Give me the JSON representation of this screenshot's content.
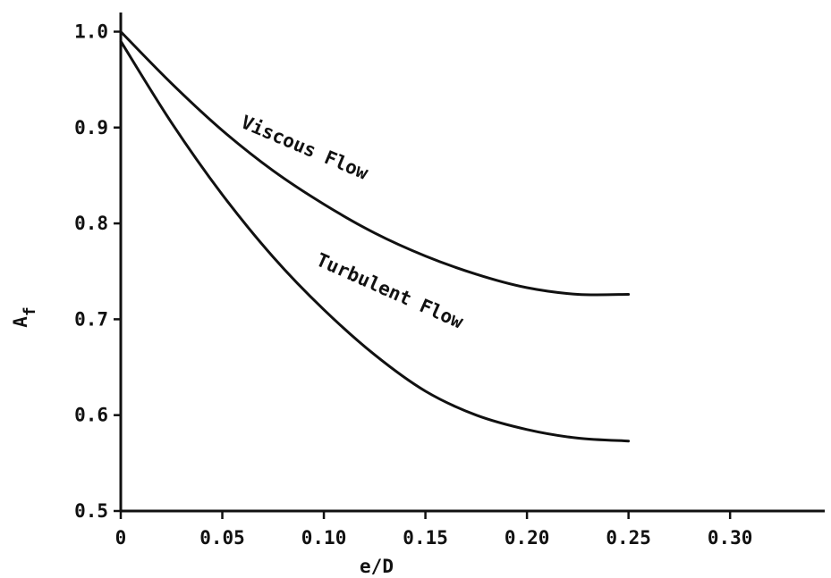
{
  "chart_data": {
    "type": "line",
    "title": "",
    "xlabel": "e/D",
    "ylabel": "A",
    "ylabel_subscript": "f",
    "xlim": [
      0,
      0.34
    ],
    "ylim": [
      0.5,
      1.02
    ],
    "x_ticks": [
      0,
      0.05,
      0.1,
      0.15,
      0.2,
      0.25,
      0.3
    ],
    "x_tick_labels": [
      "0",
      "0.05",
      "0.10",
      "0.15",
      "0.20",
      "0.25",
      "0.30"
    ],
    "y_ticks": [
      0.5,
      0.6,
      0.7,
      0.8,
      0.9,
      1.0
    ],
    "y_tick_labels": [
      "0.5",
      "0.6",
      "0.7",
      "0.8",
      "0.9",
      "1.0"
    ],
    "grid": false,
    "series": [
      {
        "name": "Viscous Flow",
        "x": [
          0,
          0.025,
          0.05,
          0.075,
          0.1,
          0.125,
          0.15,
          0.175,
          0.2,
          0.225,
          0.25
        ],
        "y": [
          1.0,
          0.946,
          0.897,
          0.855,
          0.82,
          0.79,
          0.766,
          0.747,
          0.733,
          0.726,
          0.726
        ]
      },
      {
        "name": "Turbulent Flow",
        "x": [
          0,
          0.025,
          0.05,
          0.075,
          0.1,
          0.125,
          0.15,
          0.175,
          0.2,
          0.225,
          0.25
        ],
        "y": [
          0.99,
          0.905,
          0.83,
          0.765,
          0.71,
          0.663,
          0.625,
          0.6,
          0.585,
          0.576,
          0.573
        ]
      }
    ]
  }
}
